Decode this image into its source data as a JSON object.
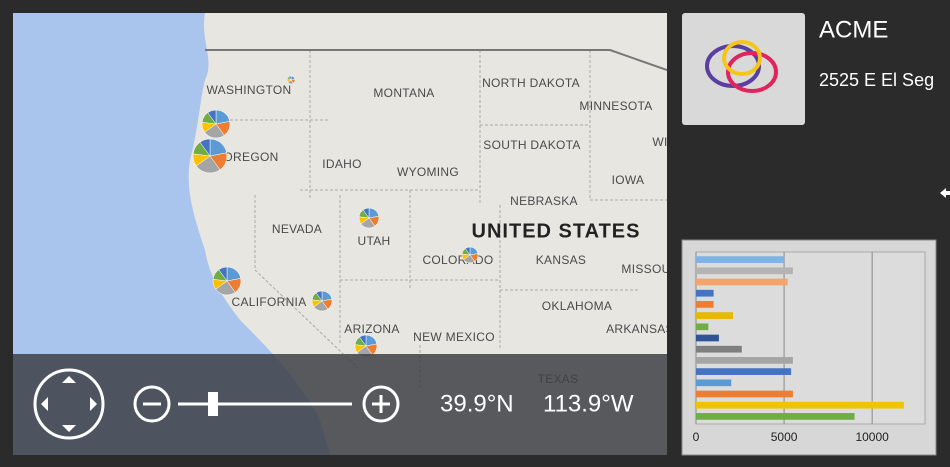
{
  "map": {
    "labels": [
      "WASHINGTON",
      "MONTANA",
      "NORTH DAKOTA",
      "MINNESOTA",
      "WI",
      "OREGON",
      "IDAHO",
      "SOUTH DAKOTA",
      "WYOMING",
      "IOWA",
      "NEBRASKA",
      "NEVADA",
      "UTAH",
      "UNITED STATES",
      "COLORADO",
      "KANSAS",
      "MISSOU",
      "CALIFORNIA",
      "OKLAHOMA",
      "ARIZONA",
      "ARKANSAS",
      "NEW MEXICO",
      "TEXAS"
    ],
    "latitude": "39.9°N",
    "longitude": "113.9°W"
  },
  "company": {
    "name": "ACME",
    "address": "2525 E El Seg"
  },
  "chart_data": {
    "type": "bar",
    "orientation": "horizontal",
    "categories": [
      null,
      null,
      null,
      null,
      null,
      null,
      null,
      null,
      null,
      null,
      null,
      null,
      null,
      null,
      null
    ],
    "values": [
      5000,
      5500,
      5200,
      1000,
      1000,
      2100,
      700,
      1300,
      2600,
      5500,
      5400,
      2000,
      5500,
      11800,
      9000
    ],
    "colors": [
      "#7fb2e5",
      "#b4b4b4",
      "#f4a46a",
      "#4472c4",
      "#ed7d31",
      "#e6b800",
      "#70ad47",
      "#2f5597",
      "#7f7f7f",
      "#a5a5a5",
      "#4472c4",
      "#5b9bd5",
      "#ed7d31",
      "#f2c100",
      "#70ad47"
    ],
    "xlim": [
      0,
      13000
    ],
    "xticks": [
      0,
      5000,
      10000
    ],
    "grid": true
  }
}
